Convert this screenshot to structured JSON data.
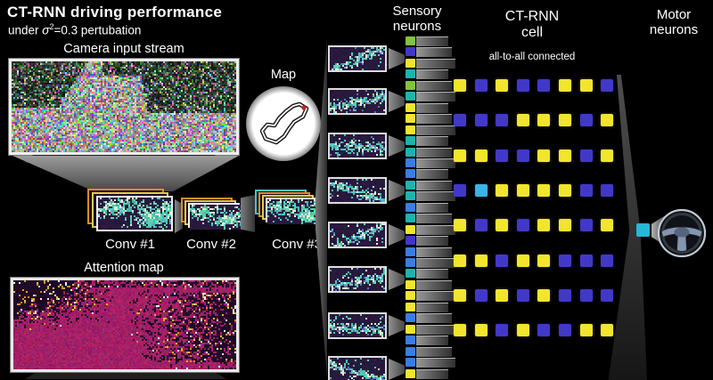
{
  "title": {
    "line1": "CT-RNN driving performance",
    "sub_prefix": "under ",
    "sub_sigma": "σ",
    "sub_exp": "2",
    "sub_rest": "=0.3 pertubation"
  },
  "camera": {
    "label": "Camera input stream"
  },
  "map": {
    "label": "Map"
  },
  "conv": {
    "labels": [
      "Conv #1",
      "Conv #2",
      "Conv #3"
    ]
  },
  "attention": {
    "label": "Attention map"
  },
  "sensory": {
    "label_line1": "Sensory",
    "label_line2": "neurons",
    "feature_maps": 8,
    "neurons": [
      "green",
      "indigo",
      "yellow",
      "teal",
      "green",
      "teal",
      "yellow",
      "yellow",
      "yellow",
      "teal",
      "teal",
      "blue",
      "blue",
      "teal",
      "teal",
      "blue",
      "teal",
      "yellow",
      "indigo",
      "blue",
      "blue",
      "teal",
      "yellow",
      "yellow",
      "yellow",
      "blue",
      "yellow",
      "blue",
      "blue",
      "blue",
      "yellow"
    ]
  },
  "ctrnn": {
    "label_line1": "CT-RNN",
    "label_line2": "cell",
    "sublabel": "all-to-all connected",
    "grid": [
      [
        "Y",
        "I",
        "Y",
        "I",
        "I",
        "Y",
        "Y",
        "I"
      ],
      [
        "I",
        "I",
        "I",
        "Y",
        "Y",
        "Y",
        "I",
        "Y"
      ],
      [
        "Y",
        "Y",
        "I",
        "I",
        "Y",
        "Y",
        "I",
        "Y"
      ],
      [
        "I",
        "C",
        "Y",
        "Y",
        "Y",
        "Y",
        "I",
        "I"
      ],
      [
        "Y",
        "I",
        "Y",
        "I",
        "Y",
        "Y",
        "I",
        "Y"
      ],
      [
        "Y",
        "Y",
        "I",
        "Y",
        "Y",
        "I",
        "I",
        "I"
      ],
      [
        "Y",
        "I",
        "Y",
        "I",
        "Y",
        "I",
        "I",
        "I"
      ],
      [
        "Y",
        "Y",
        "I",
        "Y",
        "I",
        "I",
        "Y",
        "Y"
      ]
    ]
  },
  "motor": {
    "label_line1": "Motor",
    "label_line2": "neurons"
  },
  "icons": {
    "steering_wheel": "steering-wheel-icon",
    "track_map": "track-map-icon"
  },
  "colors": {
    "yellow": "#f2e52e",
    "indigo": "#4238c8",
    "cyan": "#3cb3e6",
    "teal": "#1fb3ab",
    "green": "#82c341",
    "blue": "#3b7de0",
    "motor_neuron": "#26b7d7",
    "map_dot": "#cc1f1f"
  }
}
